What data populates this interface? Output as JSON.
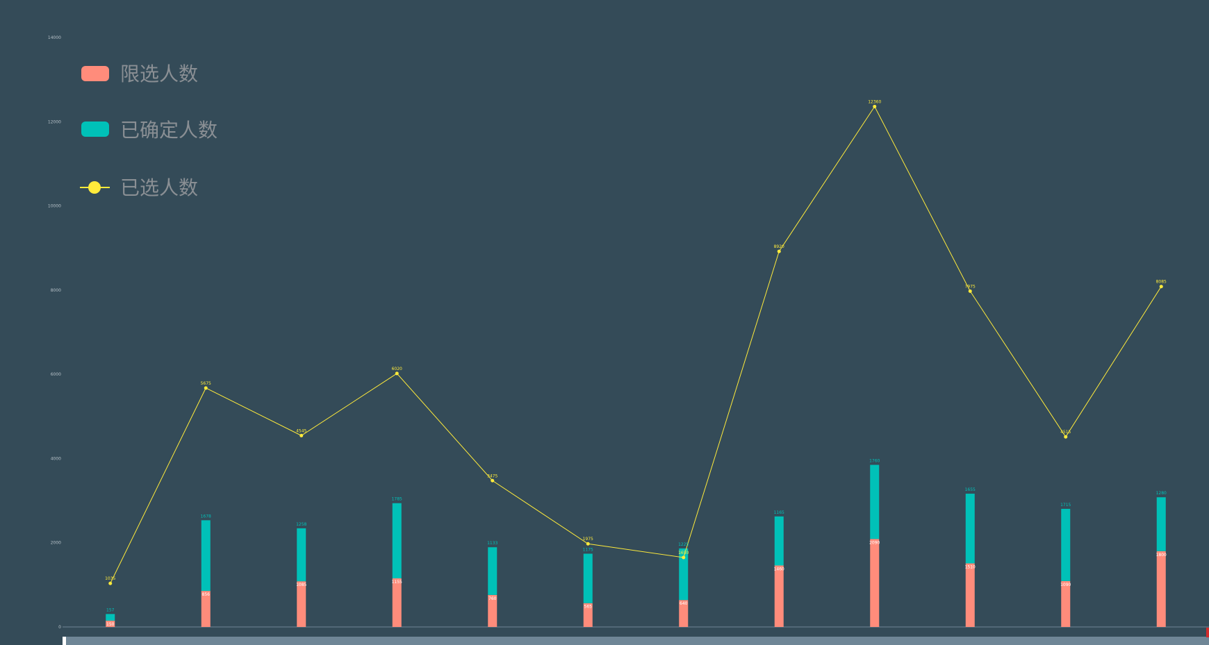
{
  "chart_data": {
    "type": "bar",
    "stacked": true,
    "categories": [
      "",
      "",
      "",
      "",
      "",
      "",
      "",
      "",
      "",
      "",
      "",
      ""
    ],
    "series": [
      {
        "name": "限选人数",
        "kind": "bar",
        "color": "#ff8c7b",
        "values": [
          150,
          856,
          1085,
          1155,
          760,
          565,
          640,
          1460,
          2090,
          1510,
          1090,
          1800
        ]
      },
      {
        "name": "已确定人数",
        "kind": "bar",
        "color": "#00c1b8",
        "values": [
          157,
          1678,
          1258,
          1785,
          1133,
          1175,
          1225,
          1165,
          1760,
          1655,
          1715,
          1280
        ],
        "label_values": [
          157,
          1678,
          1258,
          1785,
          1133,
          1175,
          1225,
          1165,
          1760,
          1655,
          1715,
          1280
        ]
      },
      {
        "name": "已选人数",
        "kind": "line",
        "color": "#ffeb3b",
        "values": [
          1035,
          5675,
          4545,
          6020,
          3475,
          1975,
          1650,
          8920,
          12360,
          7975,
          4515,
          8085
        ]
      }
    ],
    "ylim": [
      0,
      14000
    ],
    "y_ticks": [
      "0",
      "2000",
      "4000",
      "6000",
      "8000",
      "10000",
      "12000",
      "14000"
    ],
    "legend_position": "top-left",
    "grid": false
  },
  "scrollbar": {
    "visible": true
  }
}
